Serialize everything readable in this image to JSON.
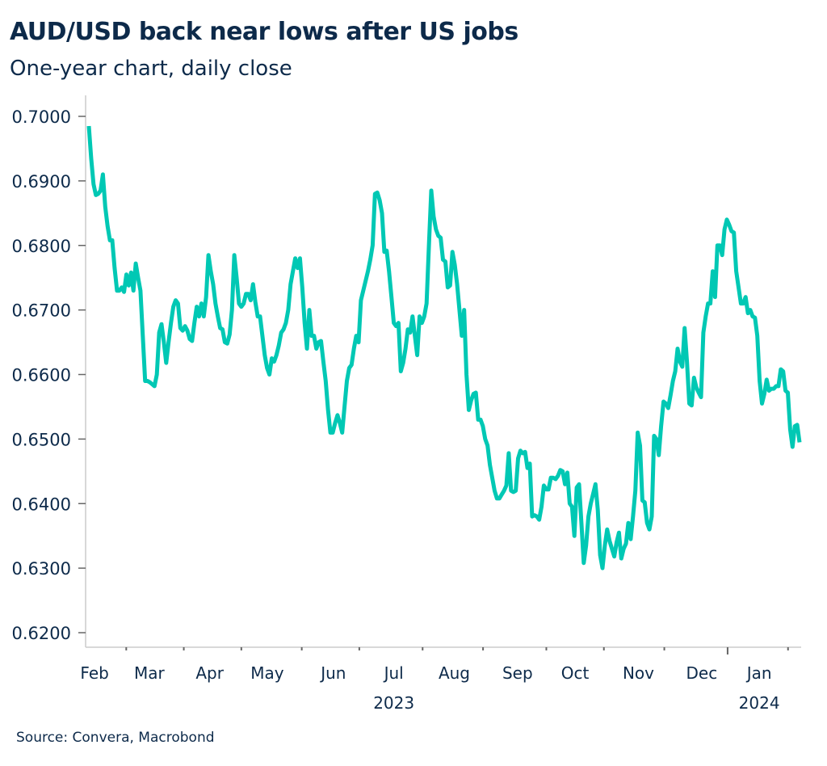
{
  "header": {
    "title": "AUD/USD back near lows after US jobs",
    "subtitle": "One-year chart, daily close"
  },
  "footer": {
    "source": "Source: Convera, Macrobond"
  },
  "colors": {
    "line": "#00c8b4",
    "text": "#0d2a4a",
    "axis": "#cccccc",
    "tick": "#666666"
  },
  "chart_data": {
    "type": "line",
    "title": "AUD/USD back near lows after US jobs",
    "subtitle": "One-year chart, daily close",
    "xlabel": "",
    "ylabel": "",
    "ylim": [
      0.6178,
      0.7025
    ],
    "grid": false,
    "legend": "none",
    "y_ticks": [
      "0.7000",
      "0.6900",
      "0.6800",
      "0.6700",
      "0.6600",
      "0.6500",
      "0.6400",
      "0.6300",
      "0.6200"
    ],
    "y_tick_values": [
      0.7,
      0.69,
      0.68,
      0.67,
      0.66,
      0.65,
      0.64,
      0.63,
      0.62
    ],
    "x_month_labels": [
      "Feb",
      "Mar",
      "Apr",
      "May",
      "Jun",
      "Jul",
      "Aug",
      "Sep",
      "Oct",
      "Nov",
      "Dec",
      "Jan"
    ],
    "x_month_label_positions": [
      2,
      21,
      42,
      62,
      85,
      106,
      127,
      149,
      169,
      191,
      213,
      233
    ],
    "x_tick_positions": [
      13,
      33,
      53,
      74,
      94,
      116,
      137,
      159,
      179,
      200,
      222,
      243
    ],
    "year_boundary_tick": 222,
    "year_labels": [
      {
        "label": "2023",
        "at": 106
      },
      {
        "label": "2024",
        "at": 233
      }
    ],
    "x_range": [
      0,
      247
    ],
    "series": [
      {
        "name": "AUD/USD",
        "values": [
          0.6985,
          0.6935,
          0.6895,
          0.6878,
          0.688,
          0.6885,
          0.691,
          0.686,
          0.683,
          0.6808,
          0.6808,
          0.6765,
          0.673,
          0.673,
          0.6735,
          0.6728,
          0.6755,
          0.6738,
          0.6758,
          0.673,
          0.6772,
          0.675,
          0.673,
          0.666,
          0.659,
          0.659,
          0.6588,
          0.6585,
          0.6582,
          0.66,
          0.6665,
          0.6678,
          0.665,
          0.6618,
          0.665,
          0.668,
          0.6705,
          0.6715,
          0.671,
          0.6672,
          0.6668,
          0.6675,
          0.6668,
          0.6655,
          0.6652,
          0.668,
          0.6705,
          0.669,
          0.671,
          0.669,
          0.672,
          0.6785,
          0.676,
          0.674,
          0.671,
          0.669,
          0.6672,
          0.667,
          0.665,
          0.6648,
          0.6662,
          0.67,
          0.6785,
          0.675,
          0.671,
          0.6705,
          0.671,
          0.6725,
          0.6725,
          0.6715,
          0.674,
          0.6712,
          0.669,
          0.669,
          0.666,
          0.663,
          0.661,
          0.66,
          0.6625,
          0.662,
          0.663,
          0.6645,
          0.6665,
          0.667,
          0.668,
          0.67,
          0.674,
          0.676,
          0.678,
          0.6765,
          0.678,
          0.6735,
          0.668,
          0.664,
          0.67,
          0.666,
          0.666,
          0.664,
          0.665,
          0.6652,
          0.662,
          0.659,
          0.6545,
          0.651,
          0.651,
          0.6525,
          0.6537,
          0.6525,
          0.651,
          0.655,
          0.659,
          0.661,
          0.6615,
          0.664,
          0.666,
          0.665,
          0.6715,
          0.673,
          0.6745,
          0.676,
          0.6778,
          0.68,
          0.688,
          0.6882,
          0.687,
          0.685,
          0.679,
          0.6792,
          0.676,
          0.672,
          0.668,
          0.6675,
          0.668,
          0.6605,
          0.6618,
          0.664,
          0.667,
          0.6665,
          0.669,
          0.666,
          0.663,
          0.669,
          0.668,
          0.669,
          0.671,
          0.68,
          0.6885,
          0.6845,
          0.6825,
          0.6815,
          0.6812,
          0.6778,
          0.6775,
          0.6735,
          0.6738,
          0.679,
          0.677,
          0.674,
          0.67,
          0.666,
          0.67,
          0.66,
          0.6545,
          0.656,
          0.657,
          0.6572,
          0.653,
          0.653,
          0.652,
          0.65,
          0.649,
          0.646,
          0.644,
          0.642,
          0.6408,
          0.6408,
          0.6414,
          0.642,
          0.6428,
          0.6478,
          0.642,
          0.6418,
          0.642,
          0.647,
          0.6482,
          0.6478,
          0.648,
          0.6455,
          0.6462,
          0.638,
          0.6382,
          0.638,
          0.6375,
          0.6395,
          0.6428,
          0.6422,
          0.6422,
          0.644,
          0.644,
          0.6438,
          0.6443,
          0.6452,
          0.645,
          0.643,
          0.6448,
          0.64,
          0.6395,
          0.635,
          0.6425,
          0.643,
          0.637,
          0.6308,
          0.6335,
          0.638,
          0.64,
          0.6415,
          0.643,
          0.639,
          0.632,
          0.63,
          0.6335,
          0.636,
          0.6342,
          0.633,
          0.6318,
          0.634,
          0.6355,
          0.6315,
          0.633,
          0.6338,
          0.637,
          0.6345,
          0.638,
          0.642,
          0.651,
          0.649,
          0.6405,
          0.6402,
          0.637,
          0.636,
          0.638,
          0.6505,
          0.65,
          0.6475,
          0.652,
          0.6558,
          0.6555,
          0.6548,
          0.6568,
          0.659,
          0.6605,
          0.664,
          0.662,
          0.6612,
          0.6672,
          0.662,
          0.6555,
          0.6552,
          0.6595,
          0.658,
          0.6572,
          0.6565,
          0.6665,
          0.669,
          0.671,
          0.671,
          0.676,
          0.672,
          0.68,
          0.68,
          0.6785,
          0.6825,
          0.684,
          0.6832,
          0.6822,
          0.682,
          0.676,
          0.6735,
          0.671,
          0.671,
          0.672,
          0.6695,
          0.67,
          0.669,
          0.6688,
          0.666,
          0.659,
          0.6555,
          0.657,
          0.6592,
          0.6575,
          0.6578,
          0.6578,
          0.6582,
          0.6582,
          0.6608,
          0.6605,
          0.6575,
          0.6572,
          0.6515,
          0.6488,
          0.652,
          0.6522,
          0.6495
        ]
      }
    ]
  }
}
